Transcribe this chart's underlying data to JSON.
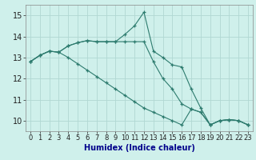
{
  "x": [
    0,
    1,
    2,
    3,
    4,
    5,
    6,
    7,
    8,
    9,
    10,
    11,
    12,
    13,
    14,
    15,
    16,
    17,
    18,
    19,
    20,
    21,
    22,
    23
  ],
  "line1": [
    12.8,
    13.1,
    13.3,
    13.25,
    13.55,
    13.7,
    13.8,
    13.75,
    13.75,
    13.75,
    14.1,
    14.5,
    15.15,
    13.3,
    13.0,
    12.65,
    12.55,
    11.5,
    10.6,
    9.8,
    10.0,
    10.05,
    10.0,
    9.8
  ],
  "line2": [
    12.8,
    13.1,
    13.3,
    13.25,
    13.55,
    13.7,
    13.8,
    13.75,
    13.75,
    13.75,
    13.75,
    13.75,
    13.75,
    12.8,
    12.0,
    11.5,
    10.8,
    10.55,
    10.4,
    9.8,
    10.0,
    10.05,
    10.0,
    9.8
  ],
  "line3": [
    12.8,
    13.1,
    13.3,
    13.25,
    13.0,
    12.7,
    12.4,
    12.1,
    11.8,
    11.5,
    11.2,
    10.9,
    10.6,
    10.4,
    10.2,
    10.0,
    9.8,
    10.55,
    10.4,
    9.8,
    10.0,
    10.05,
    10.0,
    9.8
  ],
  "color": "#2d7b6e",
  "bg_color": "#cff0eb",
  "grid_color": "#b0d8d3",
  "xlabel": "Humidex (Indice chaleur)",
  "ylim": [
    9.5,
    15.5
  ],
  "xlim": [
    -0.5,
    23.5
  ],
  "yticks": [
    10,
    11,
    12,
    13,
    14,
    15
  ],
  "xticks": [
    0,
    1,
    2,
    3,
    4,
    5,
    6,
    7,
    8,
    9,
    10,
    11,
    12,
    13,
    14,
    15,
    16,
    17,
    18,
    19,
    20,
    21,
    22,
    23
  ],
  "xlabel_color": "#00008b",
  "xlabel_fontsize": 7,
  "tick_fontsize": 6,
  "ytick_fontsize": 7
}
